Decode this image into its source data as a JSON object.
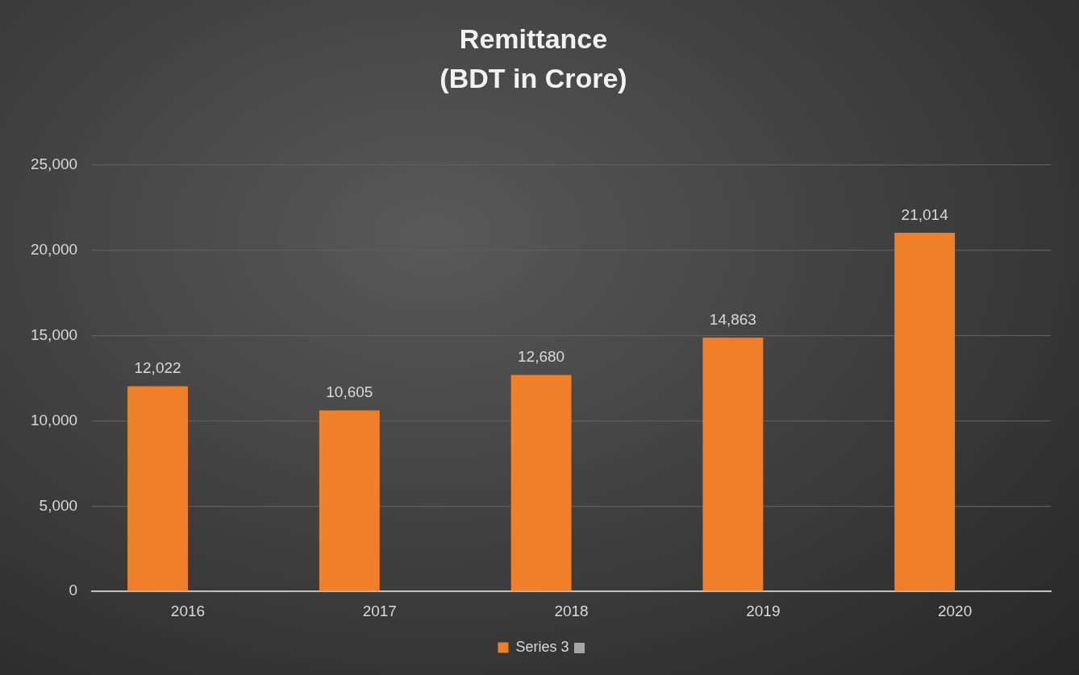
{
  "chart_data": {
    "type": "bar",
    "title": "Remittance",
    "subtitle": "(BDT in Crore)",
    "categories": [
      "2016",
      "2017",
      "2018",
      "2019",
      "2020"
    ],
    "series": [
      {
        "name": "Series 3",
        "color": "#f07f2a",
        "values": [
          12022,
          10605,
          12680,
          14863,
          21014
        ]
      },
      {
        "color": "#a5a5a5",
        "values": [
          null,
          null,
          null,
          null,
          null
        ]
      }
    ],
    "ylim": [
      0,
      25000
    ],
    "yticks": [
      {
        "value": 0,
        "label": "0"
      },
      {
        "value": 5000,
        "label": "5,000"
      },
      {
        "value": 10000,
        "label": "10,000"
      },
      {
        "value": 15000,
        "label": "15,000"
      },
      {
        "value": 20000,
        "label": "20,000"
      },
      {
        "value": 25000,
        "label": "25,000"
      }
    ],
    "grid": "y",
    "legend": "bottom",
    "value_labels": [
      "12,022",
      "10,605",
      "12,680",
      "14,863",
      "21,014"
    ]
  }
}
